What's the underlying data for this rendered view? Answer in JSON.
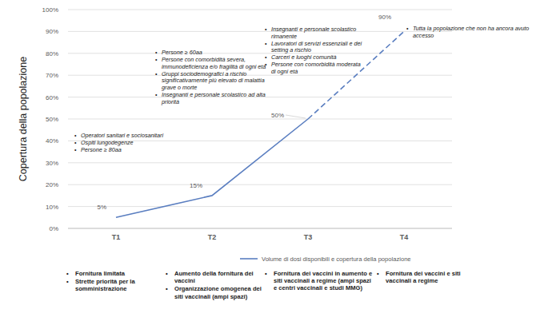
{
  "chart_data": {
    "type": "line",
    "y_label": "Copertura della popolazione",
    "categories": [
      "T1",
      "T2",
      "T3",
      "T4"
    ],
    "series": [
      {
        "name": "Volume di dosi disponibili e copertura della popolazione",
        "color": "#5a7ec0",
        "values": [
          5,
          15,
          50,
          90
        ],
        "value_labels": [
          "5%",
          "15%",
          "50%",
          "90%"
        ]
      }
    ],
    "ylim": [
      0,
      100
    ],
    "yticks": [
      {
        "value": 0,
        "label": "0%"
      },
      {
        "value": 10,
        "label": "10%"
      },
      {
        "value": 20,
        "label": "20%"
      },
      {
        "value": 30,
        "label": "30%"
      },
      {
        "value": 40,
        "label": "40%"
      },
      {
        "value": 50,
        "label": "50%"
      },
      {
        "value": 60,
        "label": "60%"
      },
      {
        "value": 70,
        "label": "70%"
      },
      {
        "value": 80,
        "label": "80%"
      },
      {
        "value": 90,
        "label": "90%"
      },
      {
        "value": 100,
        "label": "100%"
      }
    ],
    "grid": true,
    "data_labels": true,
    "legend": "bottom",
    "point_notes": [
      [
        "Operatori sanitari e sociosanitari",
        "Ospiti lungodegenze",
        "Persone ≥ 80aa"
      ],
      [
        "Persone ≥ 60aa",
        "Persone con comorbidità severa, immunodeficienza e/o fragilità di ogni età",
        "Gruppi sociodemografici a rischio significativamente più elevato di malattia grave o morte",
        "Insegnanti e personale scolastico ad alta priorità"
      ],
      [
        "Insegnanti e personale scolastico rimanente",
        "Lavoratori di servizi essenziali e dei setting a rischio",
        "Carceri e luoghi comunità",
        "Persone con comorbidità moderata di ogni età"
      ],
      [
        "Tutta la popolazione che non ha ancora avuto accesso"
      ]
    ],
    "phase_notes": [
      [
        "Fornitura limitata",
        "Strette priorità per la somministrazione"
      ],
      [
        "Aumento della fornitura dei vaccini",
        "Organizzazione omogenea dei siti vaccinali (ampi spazi)"
      ],
      [
        "Fornitura dei vaccini in aumento e siti vaccinali a regime (ampi spazi e centri vaccinali e studi MMG)"
      ],
      [
        "Fornitura dei vaccini e siti vaccinali a regime"
      ]
    ]
  }
}
